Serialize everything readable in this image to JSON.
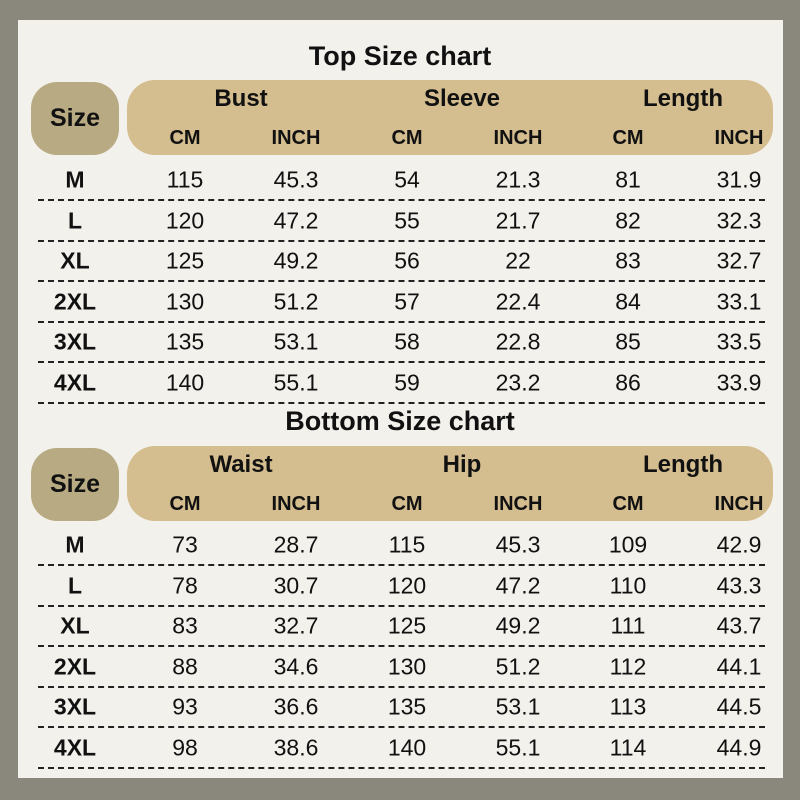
{
  "tables": [
    {
      "title": "Top Size chart",
      "size_label": "Size",
      "groups": [
        "Bust",
        "Sleeve",
        "Length"
      ],
      "units": [
        "CM",
        "INCH",
        "CM",
        "INCH",
        "CM",
        "INCH"
      ],
      "rows": [
        [
          "M",
          "115",
          "45.3",
          "54",
          "21.3",
          "81",
          "31.9"
        ],
        [
          "L",
          "120",
          "47.2",
          "55",
          "21.7",
          "82",
          "32.3"
        ],
        [
          "XL",
          "125",
          "49.2",
          "56",
          "22",
          "83",
          "32.7"
        ],
        [
          "2XL",
          "130",
          "51.2",
          "57",
          "22.4",
          "84",
          "33.1"
        ],
        [
          "3XL",
          "135",
          "53.1",
          "58",
          "22.8",
          "85",
          "33.5"
        ],
        [
          "4XL",
          "140",
          "55.1",
          "59",
          "23.2",
          "86",
          "33.9"
        ]
      ]
    },
    {
      "title": "Bottom Size chart",
      "size_label": "Size",
      "groups": [
        "Waist",
        "Hip",
        "Length"
      ],
      "units": [
        "CM",
        "INCH",
        "CM",
        "INCH",
        "CM",
        "INCH"
      ],
      "rows": [
        [
          "M",
          "73",
          "28.7",
          "115",
          "45.3",
          "109",
          "42.9"
        ],
        [
          "L",
          "78",
          "30.7",
          "120",
          "47.2",
          "110",
          "43.3"
        ],
        [
          "XL",
          "83",
          "32.7",
          "125",
          "49.2",
          "111",
          "43.7"
        ],
        [
          "2XL",
          "88",
          "34.6",
          "130",
          "51.2",
          "112",
          "44.1"
        ],
        [
          "3XL",
          "93",
          "36.6",
          "135",
          "53.1",
          "113",
          "44.5"
        ],
        [
          "4XL",
          "98",
          "38.6",
          "140",
          "55.1",
          "114",
          "44.9"
        ]
      ]
    }
  ],
  "colors": {
    "background": "#8a877c",
    "panel": "#f3f1ec",
    "size_pill": "#b8aa82",
    "header_pill": "#d4bd8e"
  }
}
